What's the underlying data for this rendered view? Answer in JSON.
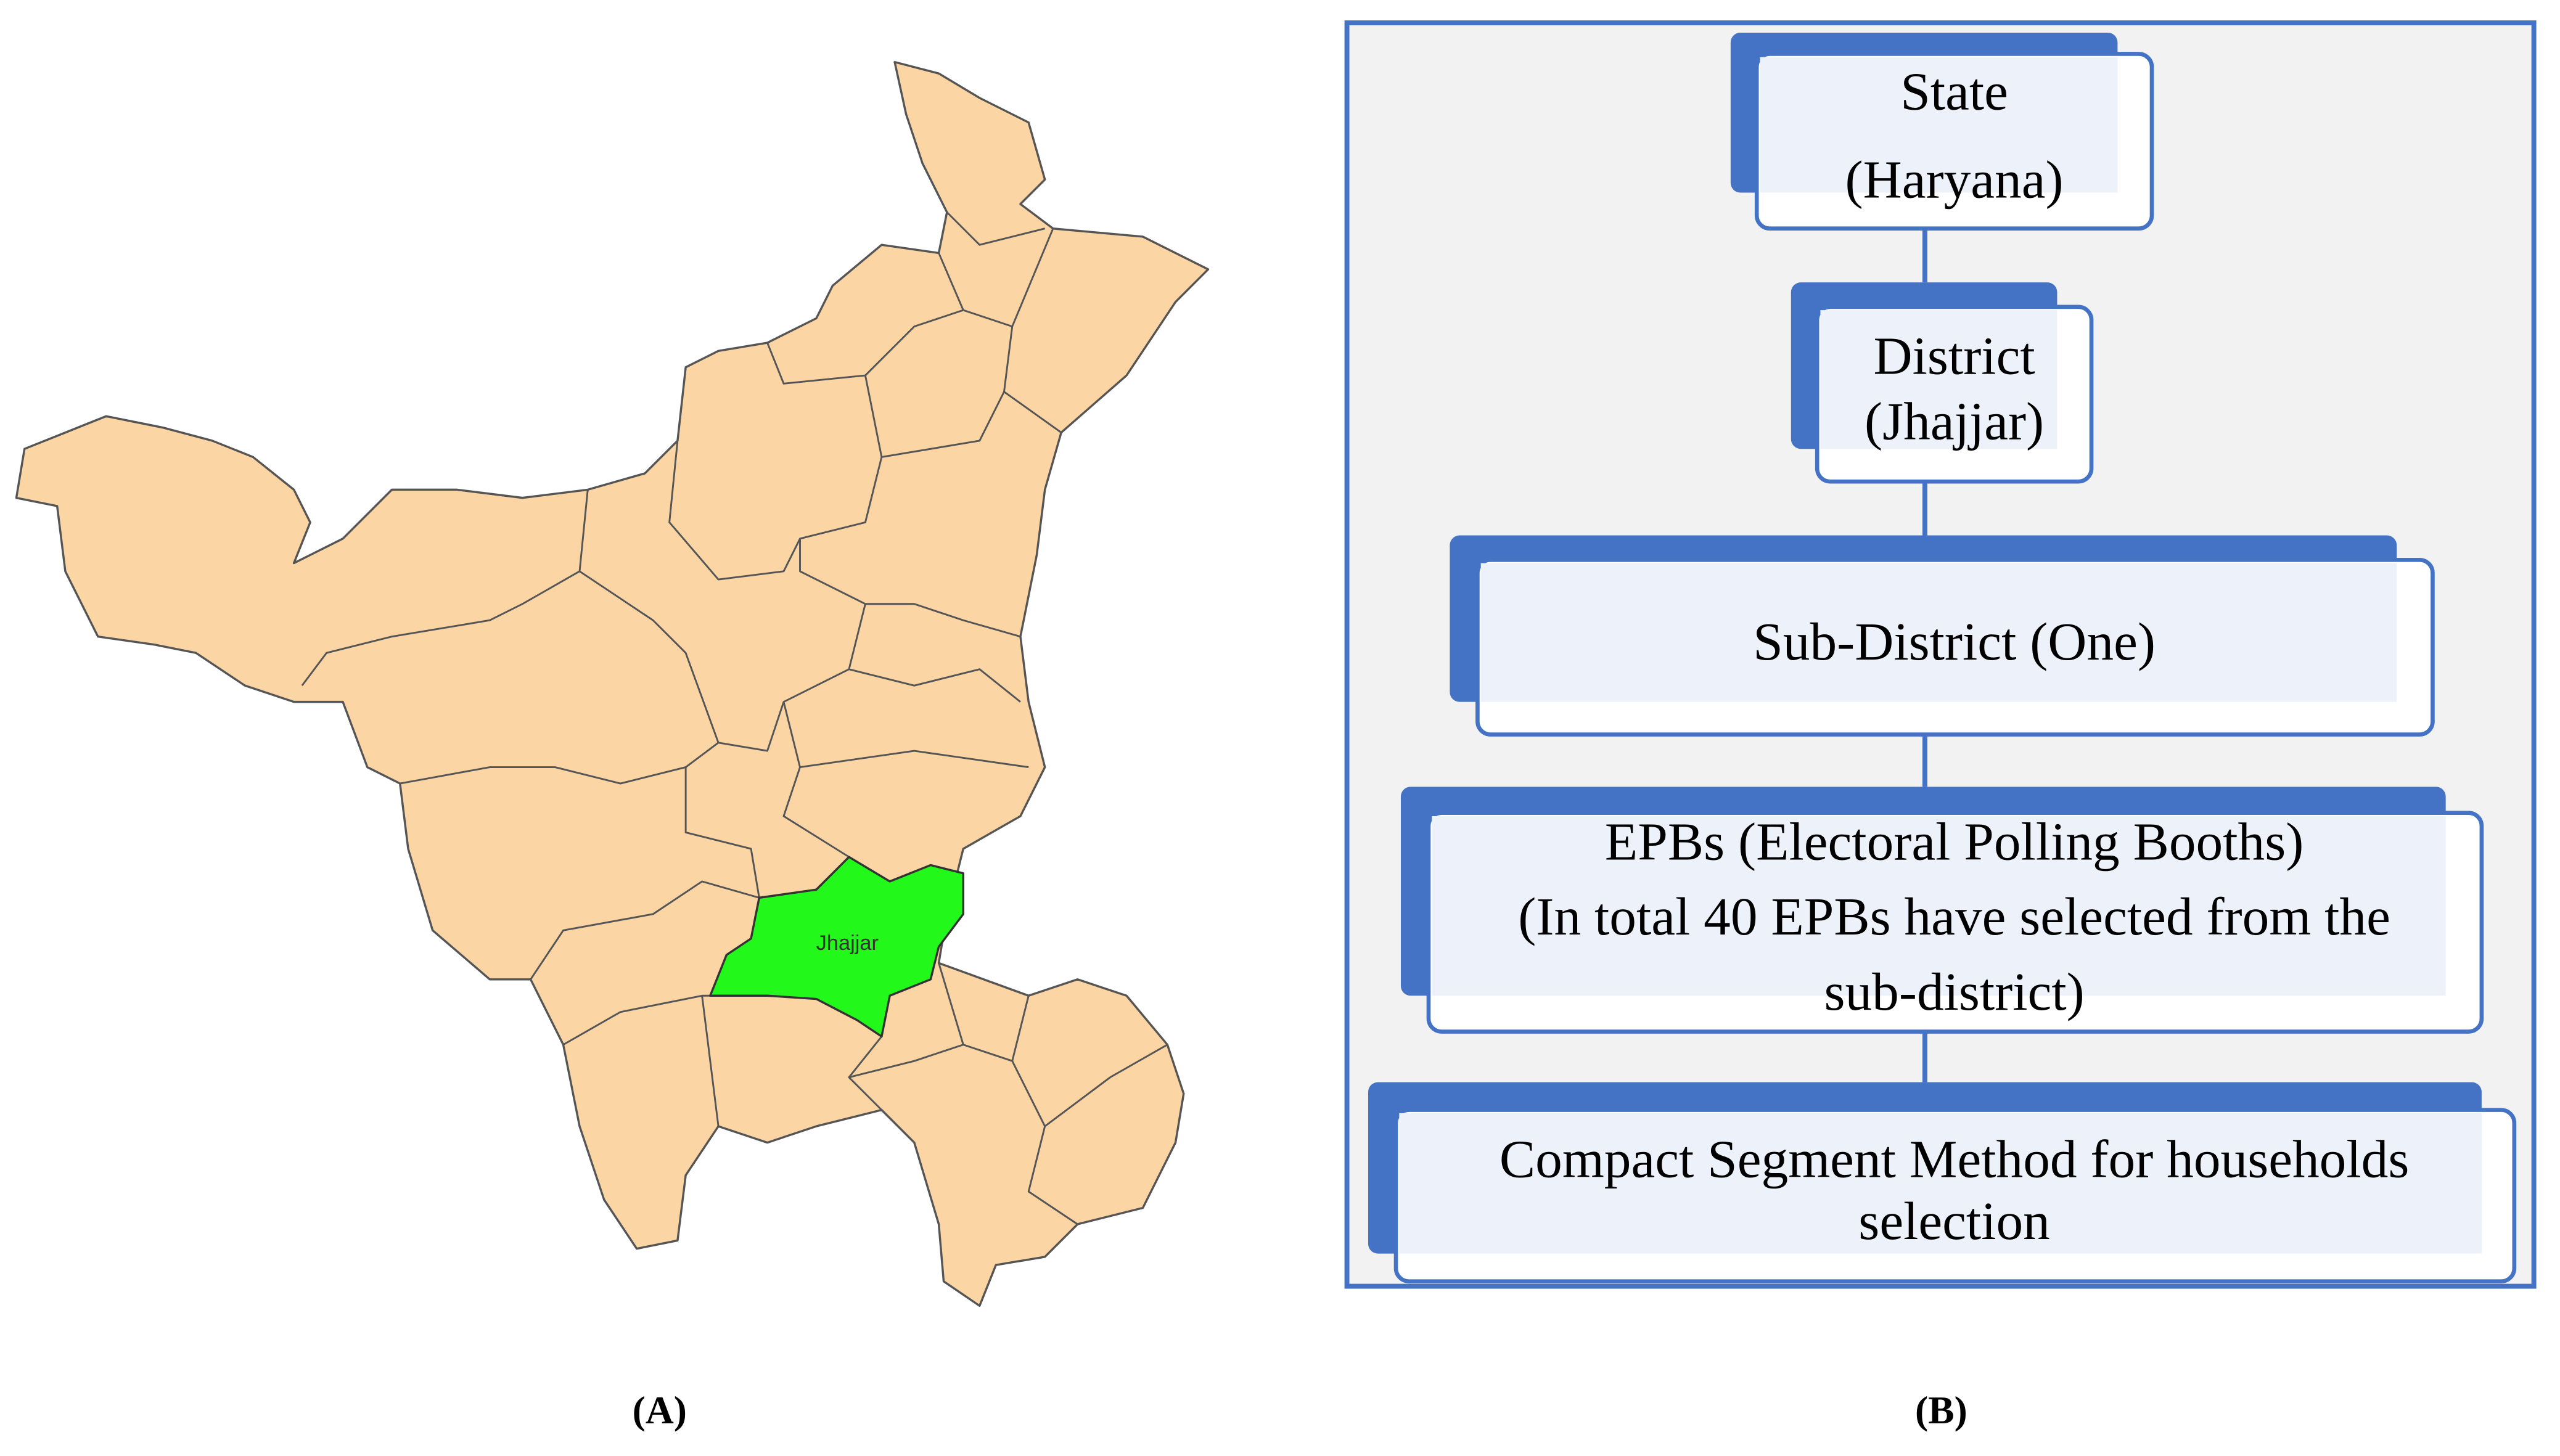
{
  "map": {
    "label": "Jhajjar",
    "caption": "(A)"
  },
  "flow": {
    "caption": "(B)",
    "nodes": [
      {
        "lines": [
          "State",
          "(Haryana)"
        ]
      },
      {
        "lines": [
          "District",
          "(Jhajjar)"
        ]
      },
      {
        "lines": [
          "Sub-District (One)"
        ]
      },
      {
        "lines": [
          "EPBs (Electoral Polling Booths)",
          "(In total 40 EPBs have selected from the",
          "sub-district)"
        ]
      },
      {
        "lines": [
          "Compact Segment Method for households",
          "selection"
        ]
      }
    ]
  }
}
